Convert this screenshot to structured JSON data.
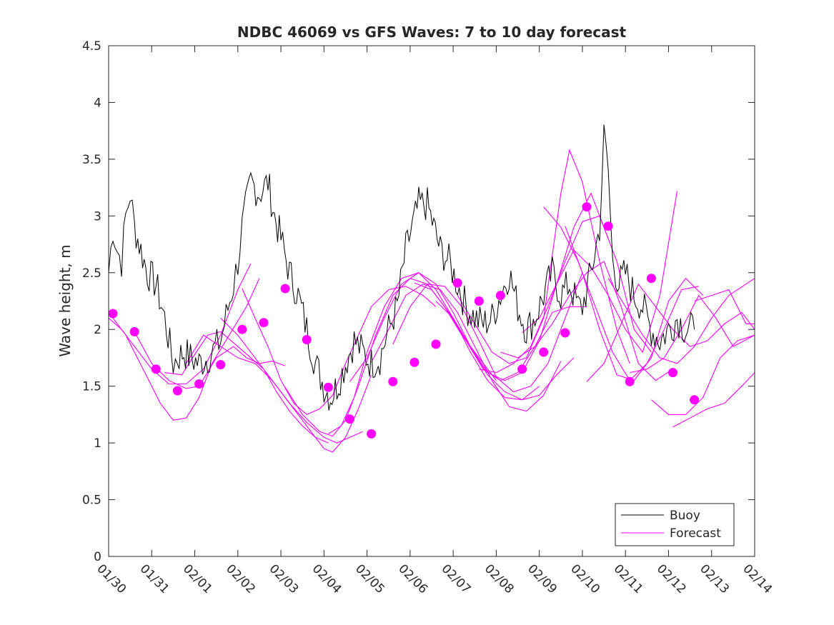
{
  "chart_data": {
    "type": "line",
    "title": "NDBC 46069 vs GFS Waves: 7 to 10 day forecast",
    "xlabel": "",
    "ylabel": "Wave height, m",
    "xlim": [
      0,
      15
    ],
    "ylim": [
      0,
      4.5
    ],
    "x_unit": "days since 01/30",
    "x_tick_labels": [
      "01/30",
      "01/31",
      "02/01",
      "02/02",
      "02/03",
      "02/04",
      "02/05",
      "02/06",
      "02/07",
      "02/08",
      "02/09",
      "02/10",
      "02/11",
      "02/12",
      "02/13",
      "02/14"
    ],
    "y_tick_labels": [
      "0",
      "0.5",
      "1",
      "1.5",
      "2",
      "2.5",
      "3",
      "3.5",
      "4",
      "4.5"
    ],
    "grid": false,
    "legend": {
      "position": "bottom-right",
      "entries": [
        "Buoy",
        "Forecast"
      ]
    },
    "colors": {
      "buoy": "#000000",
      "forecast": "#ff00ff",
      "axes": "#262626"
    },
    "series": [
      {
        "name": "Buoy",
        "note": "approximate smoothed trace of the noisy hourly buoy record",
        "x": [
          0.0,
          0.1,
          0.2,
          0.3,
          0.4,
          0.5,
          0.6,
          0.75,
          0.9,
          1.1,
          1.3,
          1.5,
          1.6,
          1.75,
          1.9,
          2.1,
          2.3,
          2.6,
          2.9,
          3.0,
          3.1,
          3.3,
          3.5,
          3.7,
          3.85,
          4.0,
          4.2,
          4.4,
          4.6,
          4.8,
          5.0,
          5.15,
          5.3,
          5.5,
          5.7,
          5.9,
          6.1,
          6.3,
          6.5,
          6.7,
          6.9,
          7.05,
          7.2,
          7.4,
          7.55,
          7.7,
          7.9,
          8.1,
          8.3,
          8.5,
          8.7,
          8.9,
          9.1,
          9.3,
          9.5,
          9.7,
          9.9,
          10.1,
          10.3,
          10.5,
          10.7,
          10.9,
          11.0,
          11.2,
          11.4,
          11.5,
          11.6,
          11.7,
          11.85,
          12.0,
          12.2,
          12.4,
          12.6,
          12.8,
          13.0,
          13.2,
          13.4,
          13.6
        ],
        "values": [
          2.5,
          2.9,
          2.7,
          2.6,
          3.0,
          3.2,
          2.9,
          2.7,
          2.5,
          2.4,
          2.1,
          1.7,
          1.75,
          1.8,
          1.75,
          1.7,
          1.75,
          1.9,
          2.4,
          2.6,
          2.9,
          3.3,
          3.2,
          3.3,
          3.0,
          2.8,
          2.5,
          2.3,
          2.0,
          1.7,
          1.5,
          1.4,
          1.5,
          1.7,
          1.9,
          1.8,
          1.7,
          1.75,
          2.0,
          2.2,
          2.7,
          2.9,
          3.1,
          3.1,
          2.9,
          2.7,
          2.6,
          2.4,
          2.2,
          2.1,
          2.05,
          2.1,
          2.3,
          2.5,
          2.2,
          2.0,
          2.1,
          2.3,
          2.5,
          2.3,
          2.4,
          2.2,
          2.2,
          2.5,
          2.9,
          3.7,
          3.4,
          2.6,
          2.4,
          2.5,
          2.3,
          2.2,
          2.0,
          1.9,
          2.0,
          2.1,
          2.0,
          2.0
        ]
      },
      {
        "name": "Forecast",
        "note": "overlapping 7-10 day forecast traces",
        "traces": [
          {
            "x": [
              0.0,
              0.3,
              0.6,
              1.0,
              1.4,
              1.8,
              2.2,
              2.6,
              3.0,
              3.3
            ],
            "values": [
              2.1,
              2.0,
              1.85,
              1.65,
              1.52,
              1.52,
              1.65,
              1.95,
              2.35,
              2.58
            ]
          },
          {
            "x": [
              0.0,
              0.4,
              0.8,
              1.2,
              1.5,
              1.8,
              2.1,
              2.4,
              2.8,
              3.2,
              3.5
            ],
            "values": [
              2.15,
              1.95,
              1.65,
              1.35,
              1.2,
              1.22,
              1.4,
              1.7,
              1.95,
              2.2,
              2.45
            ]
          },
          {
            "x": [
              0.6,
              1.0,
              1.4,
              1.8,
              2.1,
              2.5,
              2.9,
              3.2,
              3.5,
              3.8,
              4.1
            ],
            "values": [
              1.98,
              1.7,
              1.55,
              1.48,
              1.5,
              1.75,
              1.85,
              1.75,
              1.7,
              1.72,
              1.68
            ]
          },
          {
            "x": [
              1.3,
              1.7,
              2.0,
              2.3,
              2.6,
              3.0,
              3.3,
              3.6,
              3.9,
              4.2,
              4.5,
              4.8,
              5.1
            ],
            "values": [
              1.62,
              1.6,
              1.78,
              1.95,
              1.98,
              1.85,
              1.75,
              1.65,
              1.45,
              1.28,
              1.15,
              1.05,
              1.0
            ]
          },
          {
            "x": [
              1.8,
              2.2,
              2.6,
              3.0,
              3.4,
              3.8,
              4.2,
              4.6,
              5.0,
              5.3,
              5.6,
              5.9
            ],
            "values": [
              1.7,
              1.95,
              1.85,
              1.75,
              1.7,
              1.55,
              1.35,
              1.18,
              1.05,
              1.0,
              1.05,
              1.1
            ]
          },
          {
            "x": [
              2.6,
              3.0,
              3.4,
              3.8,
              4.2,
              4.6,
              5.0,
              5.2,
              5.5,
              5.8,
              6.1
            ],
            "values": [
              2.1,
              1.95,
              1.75,
              1.55,
              1.35,
              1.15,
              0.95,
              0.92,
              1.05,
              1.3,
              1.6
            ]
          },
          {
            "x": [
              3.1,
              3.4,
              3.7,
              4.0,
              4.3,
              4.6,
              4.9,
              5.2,
              5.5,
              5.8,
              6.1,
              6.5,
              6.9,
              7.3,
              7.6
            ],
            "values": [
              2.36,
              2.1,
              1.85,
              1.55,
              1.35,
              1.25,
              1.3,
              1.42,
              1.7,
              1.95,
              2.2,
              2.35,
              2.38,
              2.3,
              2.2
            ]
          },
          {
            "x": [
              4.1,
              4.5,
              4.9,
              5.2,
              5.5,
              5.8,
              6.2,
              6.6,
              7.0,
              7.4,
              7.8,
              8.2,
              8.6,
              9.0
            ],
            "values": [
              1.49,
              1.25,
              1.1,
              1.06,
              1.2,
              1.5,
              1.95,
              2.3,
              2.45,
              2.4,
              2.2,
              1.95,
              1.75,
              1.55
            ]
          },
          {
            "x": [
              5.1,
              5.4,
              5.7,
              6.0,
              6.4,
              6.8,
              7.2,
              7.6,
              8.0,
              8.4,
              8.8,
              9.2,
              9.6,
              10.0
            ],
            "values": [
              1.08,
              1.15,
              1.4,
              1.8,
              2.2,
              2.45,
              2.5,
              2.35,
              2.1,
              1.8,
              1.55,
              1.4,
              1.38,
              1.5
            ]
          },
          {
            "x": [
              5.6,
              6.0,
              6.4,
              6.8,
              7.2,
              7.6,
              8.0,
              8.4,
              8.8,
              9.2,
              9.6,
              10.0,
              10.4,
              10.8
            ],
            "values": [
              1.54,
              1.75,
              2.1,
              2.4,
              2.5,
              2.4,
              2.15,
              1.85,
              1.6,
              1.45,
              1.38,
              1.42,
              1.6,
              1.75
            ]
          },
          {
            "x": [
              6.1,
              6.5,
              6.9,
              7.3,
              7.7,
              8.1,
              8.5,
              8.9,
              9.3,
              9.7,
              10.1,
              10.5
            ],
            "values": [
              1.71,
              2.0,
              2.3,
              2.4,
              2.35,
              2.15,
              1.85,
              1.55,
              1.32,
              1.28,
              1.42,
              1.72
            ]
          },
          {
            "x": [
              6.6,
              7.0,
              7.4,
              7.8,
              8.2,
              8.6,
              9.0,
              9.4,
              9.8,
              10.2,
              10.6,
              11.0
            ],
            "values": [
              1.87,
              2.2,
              2.4,
              2.38,
              2.2,
              1.9,
              1.58,
              1.45,
              1.5,
              1.7,
              2.1,
              2.5
            ]
          },
          {
            "x": [
              7.1,
              7.5,
              7.9,
              8.3,
              8.7,
              9.1,
              9.5,
              9.9,
              10.3,
              10.7,
              11.1
            ],
            "values": [
              2.41,
              2.35,
              2.15,
              1.9,
              1.65,
              1.55,
              1.62,
              1.85,
              2.15,
              2.2,
              2.2
            ]
          },
          {
            "x": [
              7.6,
              8.0,
              8.4,
              8.8,
              9.2,
              9.6,
              10.0,
              10.4,
              10.8,
              11.2,
              11.6
            ],
            "values": [
              2.25,
              2.1,
              1.85,
              1.62,
              1.55,
              1.62,
              1.9,
              2.4,
              2.9,
              3.2,
              2.8
            ]
          },
          {
            "x": [
              8.1,
              8.5,
              8.9,
              9.3,
              9.7,
              10.1,
              10.5,
              10.7,
              11.0,
              11.4,
              11.8,
              12.1
            ],
            "values": [
              2.3,
              2.05,
              1.8,
              1.7,
              1.75,
              2.1,
              3.2,
              3.58,
              3.3,
              2.6,
              2.0,
              1.7
            ]
          },
          {
            "x": [
              8.6,
              9.0,
              9.4,
              9.8,
              10.2,
              10.6,
              11.0,
              11.4,
              11.8,
              12.2,
              12.6
            ],
            "values": [
              1.65,
              1.62,
              1.7,
              1.85,
              2.2,
              2.6,
              2.95,
              3.0,
              2.6,
              2.0,
              1.8
            ]
          },
          {
            "x": [
              9.1,
              9.5,
              9.9,
              10.3,
              10.7,
              11.1,
              11.5,
              11.9,
              12.3,
              12.7,
              13.1
            ],
            "values": [
              1.8,
              1.75,
              1.85,
              2.05,
              2.3,
              2.5,
              2.6,
              2.2,
              1.7,
              1.55,
              1.65
            ]
          },
          {
            "x": [
              9.6,
              10.0,
              10.4,
              10.8,
              11.2,
              11.6,
              12.0,
              12.4,
              12.8,
              13.2
            ],
            "values": [
              1.97,
              2.1,
              2.4,
              2.7,
              2.55,
              2.3,
              2.0,
              1.8,
              2.3,
              3.22
            ]
          },
          {
            "x": [
              10.1,
              10.5,
              10.9,
              11.3,
              11.7,
              12.1,
              12.5,
              12.9,
              13.3,
              13.7
            ],
            "values": [
              3.08,
              2.9,
              2.6,
              2.2,
              1.8,
              1.55,
              1.7,
              2.0,
              2.35,
              2.38
            ]
          },
          {
            "x": [
              10.6,
              11.0,
              11.4,
              11.8,
              12.2,
              12.6,
              13.0,
              13.4,
              13.8
            ],
            "values": [
              2.91,
              2.5,
              2.0,
              1.6,
              1.55,
              1.75,
              2.25,
              2.45,
              2.3
            ]
          },
          {
            "x": [
              11.1,
              11.5,
              11.9,
              12.3,
              12.7,
              13.1,
              13.5,
              13.9,
              14.3,
              14.7,
              15.0
            ],
            "values": [
              1.54,
              1.7,
              2.05,
              2.4,
              2.2,
              2.0,
              1.85,
              1.9,
              2.05,
              2.15,
              2.0
            ]
          },
          {
            "x": [
              11.6,
              12.0,
              12.4,
              12.8,
              13.2,
              13.6,
              14.0,
              14.4,
              14.8,
              15.0
            ],
            "values": [
              2.45,
              2.2,
              1.95,
              1.75,
              1.7,
              1.85,
              2.1,
              2.3,
              2.4,
              2.45
            ]
          },
          {
            "x": [
              12.1,
              12.5,
              12.9,
              13.3,
              13.7,
              14.1,
              14.5,
              15.0
            ],
            "values": [
              1.62,
              1.65,
              1.75,
              2.0,
              2.3,
              2.1,
              1.85,
              1.95
            ]
          },
          {
            "x": [
              12.6,
              13.0,
              13.4,
              13.8,
              14.2,
              14.6,
              15.0
            ],
            "values": [
              1.38,
              1.25,
              1.25,
              1.4,
              1.75,
              1.9,
              1.95
            ]
          },
          {
            "x": [
              13.1,
              13.5,
              13.9,
              14.3,
              14.7,
              15.0
            ],
            "values": [
              1.14,
              1.22,
              1.3,
              1.35,
              1.5,
              1.62
            ]
          },
          {
            "x": [
              13.6,
              14.0,
              14.4,
              14.8,
              15.0
            ],
            "values": [
              2.25,
              2.3,
              2.35,
              2.05,
              2.05
            ]
          }
        ],
        "markers": {
          "x": [
            0.1,
            0.6,
            1.1,
            1.6,
            2.1,
            2.6,
            3.1,
            3.6,
            4.1,
            4.6,
            5.1,
            5.6,
            6.1,
            6.6,
            7.1,
            7.6,
            8.1,
            8.6,
            9.1,
            9.6,
            10.1,
            10.6,
            11.1,
            11.6,
            12.1,
            12.6,
            13.1,
            13.6
          ],
          "values": [
            2.14,
            1.98,
            1.65,
            1.46,
            1.52,
            1.69,
            2.0,
            2.06,
            2.36,
            1.91,
            1.49,
            1.21,
            1.08,
            1.54,
            1.71,
            1.87,
            2.41,
            2.25,
            2.3,
            1.65,
            1.8,
            1.97,
            3.08,
            2.91,
            1.54,
            2.45,
            1.62,
            1.38
          ]
        }
      }
    ]
  }
}
